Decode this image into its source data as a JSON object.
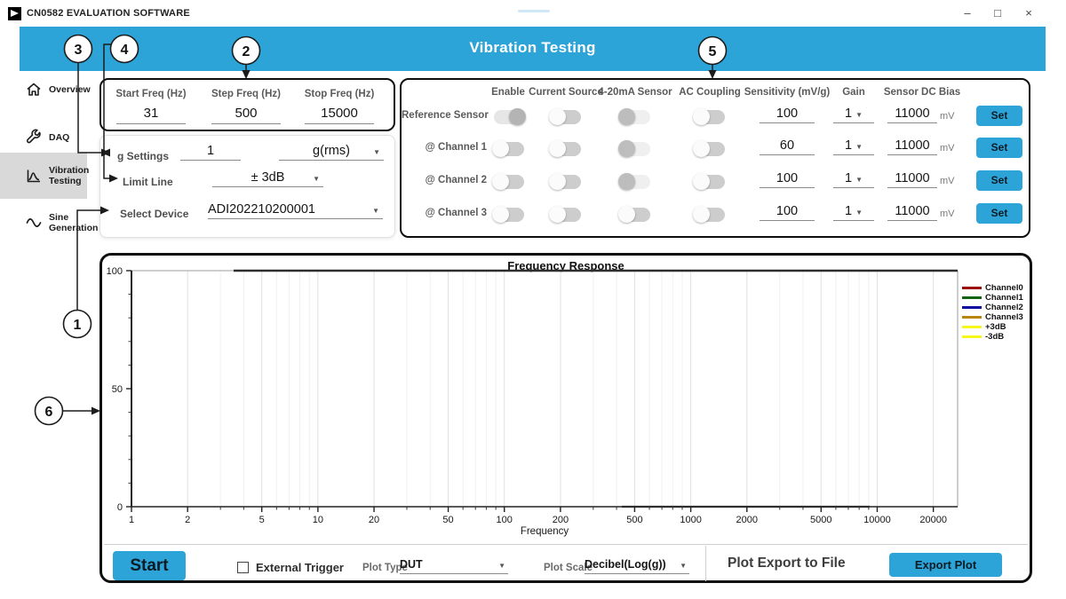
{
  "window": {
    "title": "CN0582 EVALUATION SOFTWARE",
    "minimize_glyph": "–",
    "maximize_glyph": "□",
    "close_glyph": "×"
  },
  "header": {
    "title": "Vibration Testing"
  },
  "sidebar": {
    "items": [
      {
        "label": "Overview",
        "icon": "home-icon",
        "selected": false
      },
      {
        "label": "DAQ",
        "icon": "wrench-icon",
        "selected": false
      },
      {
        "label": "Vibration Testing",
        "icon": "vibration-icon",
        "selected": true
      },
      {
        "label": "Sine Generation",
        "icon": "sine-icon",
        "selected": false
      }
    ]
  },
  "callouts": {
    "c1": "1",
    "c2": "2",
    "c3": "3",
    "c4": "4",
    "c5": "5",
    "c6": "6"
  },
  "freq_panel": {
    "fields": [
      {
        "label": "Start Freq (Hz)",
        "value": "31"
      },
      {
        "label": "Step Freq (Hz)",
        "value": "500"
      },
      {
        "label": "Stop Freq (Hz)",
        "value": "15000"
      }
    ]
  },
  "settings_panel": {
    "g_label": "g Settings",
    "g_value": "1",
    "g_unit": "g(rms)",
    "limit_label": "Limit Line",
    "limit_value": "± 3dB",
    "device_label": "Select Device",
    "device_value": "ADI202210200001"
  },
  "channel_panel": {
    "headers": [
      "Enable",
      "Current Source",
      "4-20mA Sensor",
      "AC Coupling",
      "Sensitivity (mV/g)",
      "Gain",
      "Sensor DC Bias"
    ],
    "mv_unit": "mV",
    "set_label": "Set",
    "rows": [
      {
        "label": "Reference Sensor",
        "enable": "on",
        "current_source": "off",
        "sensor_420": "disabled",
        "ac_coupling": "off",
        "sensitivity": "100",
        "gain": "1",
        "bias": "11000"
      },
      {
        "label": "@ Channel 1",
        "enable": "off",
        "current_source": "off",
        "sensor_420": "disabled",
        "ac_coupling": "off",
        "sensitivity": "60",
        "gain": "1",
        "bias": "11000"
      },
      {
        "label": "@ Channel 2",
        "enable": "off",
        "current_source": "off",
        "sensor_420": "disabled",
        "ac_coupling": "off",
        "sensitivity": "100",
        "gain": "1",
        "bias": "11000"
      },
      {
        "label": "@ Channel 3",
        "enable": "off",
        "current_source": "off",
        "sensor_420": "off",
        "ac_coupling": "off",
        "sensitivity": "100",
        "gain": "1",
        "bias": "11000"
      }
    ]
  },
  "chart": {
    "title": "Frequency Response",
    "xlabel": "Frequency",
    "x_scale": "log",
    "x_max": 27000,
    "x_major_ticks": [
      1,
      2,
      5,
      10,
      20,
      50,
      100,
      200,
      500,
      1000,
      2000,
      5000,
      10000,
      20000
    ],
    "x_minor_ticks": [
      3,
      4,
      6,
      7,
      8,
      9,
      30,
      40,
      60,
      70,
      80,
      90,
      300,
      400,
      600,
      700,
      800,
      900,
      3000,
      4000,
      6000,
      7000,
      8000,
      9000
    ],
    "ylim": [
      0,
      100
    ],
    "y_major_ticks": [
      0,
      50,
      100
    ],
    "y_minor_ticks": [
      10,
      20,
      30,
      40,
      60,
      70,
      80,
      90
    ],
    "legend": [
      {
        "label": "Channel0",
        "color": "#9c0606"
      },
      {
        "label": "Channel1",
        "color": "#136313"
      },
      {
        "label": "Channel2",
        "color": "#0a0a9e"
      },
      {
        "label": "Channel3",
        "color": "#b8860b"
      },
      {
        "label": "+3dB",
        "color": "#f7f71a"
      },
      {
        "label": "-3dB",
        "color": "#f7f71a"
      }
    ]
  },
  "chart_data": {
    "type": "line",
    "title": "Frequency Response",
    "xlabel": "Frequency",
    "ylabel": "",
    "x_scale": "log",
    "xlim": [
      1,
      27000
    ],
    "ylim": [
      0,
      100
    ],
    "grid": true,
    "legend_position": "right-outside",
    "series": [
      {
        "name": "Channel0",
        "x": [],
        "y": []
      },
      {
        "name": "Channel1",
        "x": [],
        "y": []
      },
      {
        "name": "Channel2",
        "x": [],
        "y": []
      },
      {
        "name": "Channel3",
        "x": [],
        "y": []
      },
      {
        "name": "+3dB",
        "x": [],
        "y": []
      },
      {
        "name": "-3dB",
        "x": [],
        "y": []
      }
    ]
  },
  "controls": {
    "start": "Start",
    "external_trigger": "External Trigger",
    "trigger_checked": false,
    "plot_type_label": "Plot Type",
    "plot_type_value": "DUT",
    "plot_scale_label": "Plot Scale",
    "plot_scale_value": "Decibel(Log(g))",
    "export_title": "Plot Export to File",
    "export_button": "Export Plot"
  },
  "colors": {
    "accent": "#2CA4D8",
    "panel_border": "#0e0e0e",
    "limit_line": "#f7f71a"
  }
}
